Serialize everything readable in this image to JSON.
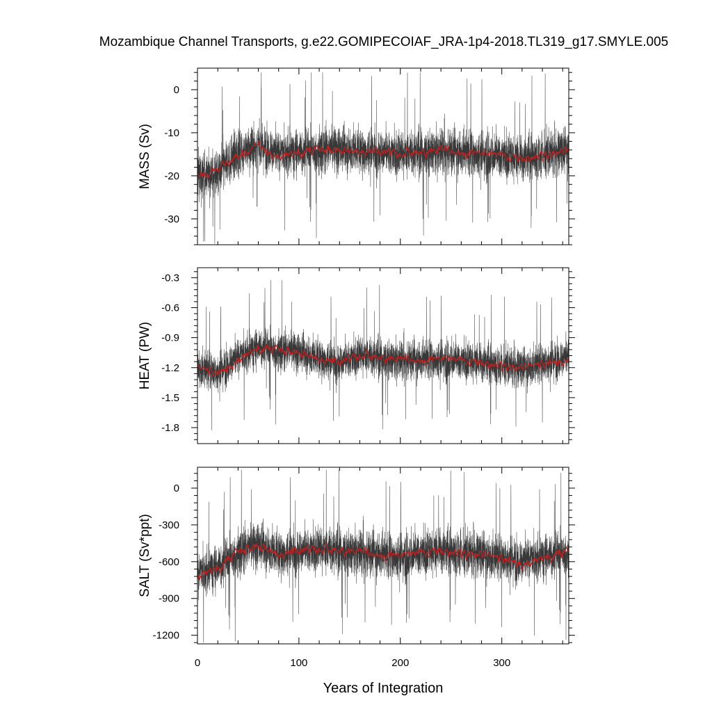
{
  "title": "Mozambique Channel Transports, g.e22.GOMIPECOIAF_JRA-1p4-2018.TL319_g17.SMYLE.005",
  "xlabel": "Years of Integration",
  "x_tick_labels": [
    "0",
    "100",
    "200",
    "300"
  ],
  "colors": {
    "raw": "#000000",
    "smooth": "#cc1f1f"
  },
  "chart_data": [
    {
      "type": "line",
      "ylabel": "MASS (Sv)",
      "xlim": [
        0,
        366
      ],
      "ylim": [
        -36,
        5
      ],
      "yticks": [
        0,
        -10,
        -20,
        -30
      ],
      "ytick_labels": [
        "0",
        "-10",
        "-20",
        "-30"
      ],
      "series": [
        {
          "role": "raw",
          "mean_segments": [
            [
              0,
              -20
            ],
            [
              20,
              -19
            ],
            [
              40,
              -15
            ],
            [
              60,
              -13
            ],
            [
              80,
              -15
            ],
            [
              120,
              -14
            ],
            [
              160,
              -14
            ],
            [
              200,
              -15
            ],
            [
              240,
              -14
            ],
            [
              280,
              -15
            ],
            [
              320,
              -16
            ],
            [
              366,
              -14
            ]
          ],
          "spread": 6,
          "spike_min": -36,
          "spike_max": 4
        },
        {
          "role": "smooth",
          "mean_segments": [
            [
              0,
              -20
            ],
            [
              20,
              -19
            ],
            [
              40,
              -15
            ],
            [
              60,
              -13
            ],
            [
              80,
              -15
            ],
            [
              120,
              -14
            ],
            [
              160,
              -14
            ],
            [
              200,
              -15
            ],
            [
              240,
              -14
            ],
            [
              280,
              -15
            ],
            [
              320,
              -16
            ],
            [
              366,
              -14
            ]
          ],
          "spread": 1.2
        }
      ]
    },
    {
      "type": "line",
      "ylabel": "HEAT (PW)",
      "xlim": [
        0,
        366
      ],
      "ylim": [
        -1.96,
        -0.2
      ],
      "yticks": [
        -0.3,
        -0.6,
        -0.9,
        -1.2,
        -1.5,
        -1.8
      ],
      "ytick_labels": [
        "-0.3",
        "-0.6",
        "-0.9",
        "-1.2",
        "-1.5",
        "-1.8"
      ],
      "series": [
        {
          "role": "raw",
          "mean_segments": [
            [
              0,
              -1.2
            ],
            [
              20,
              -1.25
            ],
            [
              40,
              -1.1
            ],
            [
              60,
              -1.0
            ],
            [
              100,
              -1.05
            ],
            [
              140,
              -1.15
            ],
            [
              160,
              -1.08
            ],
            [
              200,
              -1.12
            ],
            [
              240,
              -1.12
            ],
            [
              280,
              -1.15
            ],
            [
              320,
              -1.2
            ],
            [
              366,
              -1.1
            ]
          ],
          "spread": 0.22,
          "spike_min": -1.9,
          "spike_max": -0.25
        },
        {
          "role": "smooth",
          "mean_segments": [
            [
              0,
              -1.2
            ],
            [
              20,
              -1.25
            ],
            [
              40,
              -1.1
            ],
            [
              60,
              -1.0
            ],
            [
              100,
              -1.05
            ],
            [
              140,
              -1.15
            ],
            [
              160,
              -1.08
            ],
            [
              200,
              -1.12
            ],
            [
              240,
              -1.12
            ],
            [
              280,
              -1.15
            ],
            [
              320,
              -1.2
            ],
            [
              366,
              -1.1
            ]
          ],
          "spread": 0.05
        }
      ]
    },
    {
      "type": "line",
      "ylabel": "SALT (Sv*ppt)",
      "xlim": [
        0,
        366
      ],
      "ylim": [
        -1270,
        170
      ],
      "yticks": [
        0,
        -300,
        -600,
        -900,
        -1200
      ],
      "ytick_labels": [
        "0",
        "-300",
        "-600",
        "-900",
        "-1200"
      ],
      "series": [
        {
          "role": "raw",
          "mean_segments": [
            [
              0,
              -700
            ],
            [
              20,
              -650
            ],
            [
              40,
              -520
            ],
            [
              60,
              -470
            ],
            [
              80,
              -530
            ],
            [
              120,
              -500
            ],
            [
              160,
              -520
            ],
            [
              200,
              -560
            ],
            [
              240,
              -510
            ],
            [
              280,
              -540
            ],
            [
              320,
              -600
            ],
            [
              366,
              -520
            ]
          ],
          "spread": 210,
          "spike_min": -1260,
          "spike_max": 150
        },
        {
          "role": "smooth",
          "mean_segments": [
            [
              0,
              -700
            ],
            [
              20,
              -650
            ],
            [
              40,
              -520
            ],
            [
              60,
              -470
            ],
            [
              80,
              -530
            ],
            [
              120,
              -500
            ],
            [
              160,
              -520
            ],
            [
              200,
              -560
            ],
            [
              240,
              -510
            ],
            [
              280,
              -540
            ],
            [
              320,
              -600
            ],
            [
              366,
              -520
            ]
          ],
          "spread": 45
        }
      ]
    }
  ]
}
